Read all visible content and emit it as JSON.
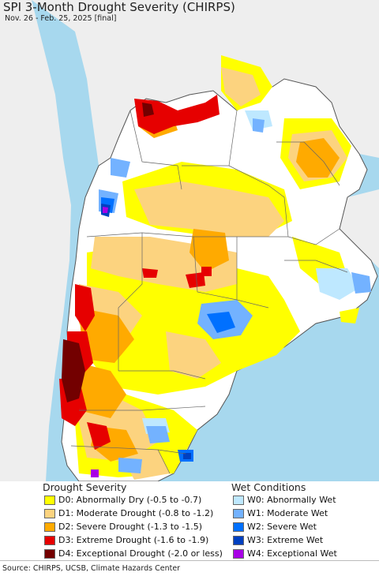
{
  "header": {
    "title": "SPI 3-Month Drought Severity (CHIRPS)",
    "subtitle": "Nov. 26 - Feb. 25, 2025 [final]"
  },
  "colors": {
    "ocean": "#a7d8ee",
    "land_outside": "#eeeeee",
    "land_normal": "#ffffff",
    "border": "#555555",
    "D0": "#ffff00",
    "D1": "#fcd37f",
    "D2": "#ffaa00",
    "D3": "#e60000",
    "D4": "#730000",
    "W0": "#bee8ff",
    "W1": "#73b2ff",
    "W2": "#0070ff",
    "W3": "#0040c0",
    "W4": "#a800e6"
  },
  "legend": {
    "drought_title": "Drought Severity",
    "wet_title": "Wet Conditions",
    "drought": [
      {
        "key": "D0",
        "label": "D0: Abnormally Dry (-0.5 to -0.7)"
      },
      {
        "key": "D1",
        "label": "D1: Moderate Drought (-0.8 to -1.2)"
      },
      {
        "key": "D2",
        "label": "D2: Severe Drought (-1.3 to -1.5)"
      },
      {
        "key": "D3",
        "label": "D3: Extreme Drought (-1.6 to -1.9)"
      },
      {
        "key": "D4",
        "label": "D4: Exceptional Drought (-2.0 or less)"
      }
    ],
    "wet": [
      {
        "key": "W0",
        "label": "W0: Abnormally Wet"
      },
      {
        "key": "W1",
        "label": "W1: Moderate Wet"
      },
      {
        "key": "W2",
        "label": "W2: Severe Wet"
      },
      {
        "key": "W3",
        "label": "W3: Extreme Wet"
      },
      {
        "key": "W4",
        "label": "W4: Exceptional Wet"
      }
    ]
  },
  "footer": {
    "source": "Source: CHIRPS, UCSB, Climate Hazards Center"
  }
}
